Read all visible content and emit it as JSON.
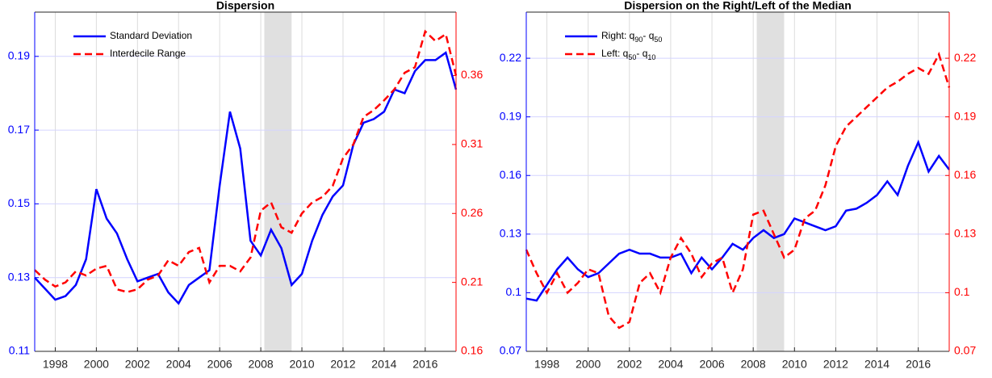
{
  "chart_data": [
    {
      "type": "line",
      "title": "Dispersion",
      "x": [
        1997.0,
        1997.5,
        1998.0,
        1998.5,
        1999.0,
        1999.5,
        2000.0,
        2000.5,
        2001.0,
        2001.5,
        2002.0,
        2002.5,
        2003.0,
        2003.5,
        2004.0,
        2004.5,
        2005.0,
        2005.5,
        2006.0,
        2006.5,
        2007.0,
        2007.5,
        2008.0,
        2008.5,
        2009.0,
        2009.5,
        2010.0,
        2010.5,
        2011.0,
        2011.5,
        2012.0,
        2012.5,
        2013.0,
        2013.5,
        2014.0,
        2014.5,
        2015.0,
        2015.5,
        2016.0,
        2016.5,
        2017.0,
        2017.5
      ],
      "xlim": [
        1997.0,
        2017.5
      ],
      "xticks": [
        1998,
        2000,
        2002,
        2004,
        2006,
        2008,
        2010,
        2012,
        2014,
        2016
      ],
      "ylim": [
        0.11,
        0.202
      ],
      "yticks": [
        0.11,
        0.13,
        0.15,
        0.17,
        0.19
      ],
      "y2lim": [
        0.16,
        0.406
      ],
      "y2ticks": [
        0.16,
        0.21,
        0.26,
        0.31,
        0.36
      ],
      "grid": true,
      "legend": "upper left",
      "shaded_region": [
        2008.17,
        2009.5
      ],
      "series": [
        {
          "name": "Standard Deviation",
          "color": "#0000ff",
          "line_style": "solid",
          "values": [
            0.13,
            0.127,
            0.124,
            0.125,
            0.128,
            0.135,
            0.154,
            0.146,
            0.142,
            0.135,
            0.129,
            0.13,
            0.131,
            0.126,
            0.123,
            0.128,
            0.13,
            0.132,
            0.155,
            0.175,
            0.165,
            0.14,
            0.136,
            0.143,
            0.138,
            0.128,
            0.131,
            0.14,
            0.147,
            0.152,
            0.155,
            0.166,
            0.172,
            0.173,
            0.175,
            0.181,
            0.18,
            0.186,
            0.189,
            0.189,
            0.191,
            0.181
          ]
        },
        {
          "name": "Interdecile Range",
          "color": "#ff0000",
          "line_style": "dashed",
          "axis": "y2",
          "values": [
            0.219,
            0.212,
            0.207,
            0.21,
            0.218,
            0.215,
            0.22,
            0.222,
            0.205,
            0.203,
            0.205,
            0.212,
            0.215,
            0.226,
            0.222,
            0.232,
            0.235,
            0.21,
            0.222,
            0.222,
            0.218,
            0.228,
            0.262,
            0.268,
            0.25,
            0.246,
            0.26,
            0.268,
            0.272,
            0.28,
            0.3,
            0.31,
            0.33,
            0.335,
            0.342,
            0.35,
            0.362,
            0.366,
            0.392,
            0.385,
            0.39,
            0.36
          ]
        }
      ]
    },
    {
      "type": "line",
      "title": "Dispersion on the Right/Left of the Median",
      "x": [
        1997.0,
        1997.5,
        1998.0,
        1998.5,
        1999.0,
        1999.5,
        2000.0,
        2000.5,
        2001.0,
        2001.5,
        2002.0,
        2002.5,
        2003.0,
        2003.5,
        2004.0,
        2004.5,
        2005.0,
        2005.5,
        2006.0,
        2006.5,
        2007.0,
        2007.5,
        2008.0,
        2008.5,
        2009.0,
        2009.5,
        2010.0,
        2010.5,
        2011.0,
        2011.5,
        2012.0,
        2012.5,
        2013.0,
        2013.5,
        2014.0,
        2014.5,
        2015.0,
        2015.5,
        2016.0,
        2016.5,
        2017.0,
        2017.5
      ],
      "xlim": [
        1997.0,
        2017.5
      ],
      "xticks": [
        1998,
        2000,
        2002,
        2004,
        2006,
        2008,
        2010,
        2012,
        2014,
        2016
      ],
      "ylim": [
        0.07,
        0.2436
      ],
      "yticks": [
        0.07,
        0.1,
        0.13,
        0.16,
        0.19,
        0.22
      ],
      "y2lim": [
        0.07,
        0.2436
      ],
      "y2ticks": [
        0.07,
        0.1,
        0.13,
        0.16,
        0.19,
        0.22
      ],
      "grid": true,
      "legend": "upper left",
      "shaded_region": [
        2008.17,
        2009.5
      ],
      "series": [
        {
          "name": "Right: q90- q50",
          "color": "#0000ff",
          "line_style": "solid",
          "values": [
            0.097,
            0.096,
            0.104,
            0.112,
            0.118,
            0.112,
            0.108,
            0.11,
            0.115,
            0.12,
            0.122,
            0.12,
            0.12,
            0.118,
            0.118,
            0.12,
            0.11,
            0.118,
            0.112,
            0.118,
            0.125,
            0.122,
            0.128,
            0.132,
            0.128,
            0.13,
            0.138,
            0.136,
            0.134,
            0.132,
            0.134,
            0.142,
            0.143,
            0.146,
            0.15,
            0.157,
            0.15,
            0.165,
            0.177,
            0.162,
            0.17,
            0.163
          ]
        },
        {
          "name": "Left: q50- q10",
          "color": "#ff0000",
          "line_style": "dashed",
          "axis": "y2",
          "values": [
            0.122,
            0.11,
            0.1,
            0.11,
            0.1,
            0.105,
            0.112,
            0.11,
            0.088,
            0.082,
            0.085,
            0.105,
            0.11,
            0.1,
            0.118,
            0.128,
            0.12,
            0.108,
            0.115,
            0.118,
            0.1,
            0.112,
            0.14,
            0.142,
            0.13,
            0.118,
            0.122,
            0.138,
            0.142,
            0.155,
            0.175,
            0.185,
            0.19,
            0.195,
            0.2,
            0.205,
            0.208,
            0.212,
            0.215,
            0.212,
            0.222,
            0.205
          ]
        }
      ]
    }
  ]
}
